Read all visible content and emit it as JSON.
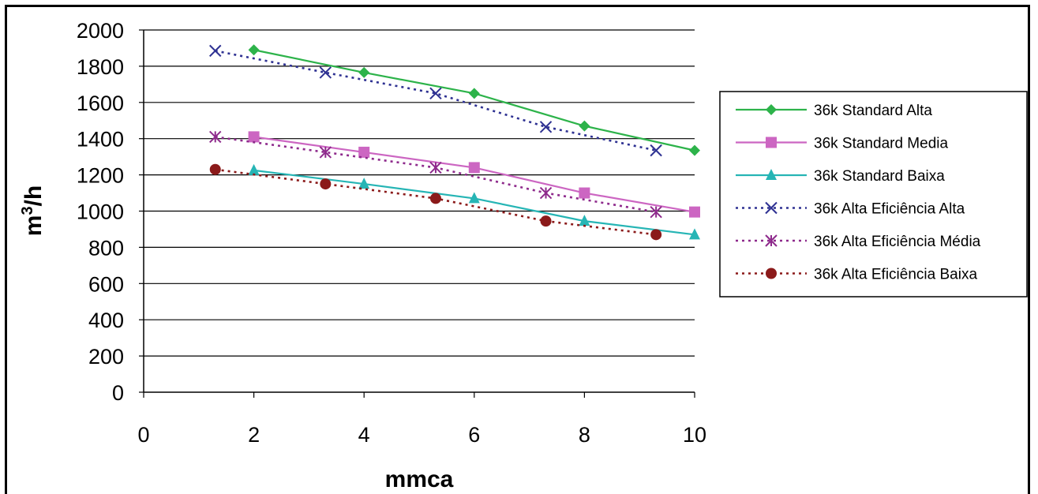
{
  "chart_data": {
    "type": "line",
    "xlabel": "mmca",
    "ylabel": "m³/h",
    "xlim": [
      0,
      10
    ],
    "ylim": [
      0,
      2000
    ],
    "xticks": [
      "0",
      "2",
      "4",
      "6",
      "8",
      "10"
    ],
    "yticks": [
      "0",
      "200",
      "400",
      "600",
      "800",
      "1000",
      "1200",
      "1400",
      "1600",
      "1800",
      "2000"
    ],
    "grid": "horizontal",
    "legend_position": "right",
    "series": [
      {
        "name": "36k Standard Alta",
        "color": "#2DB34A",
        "marker": "diamond",
        "dash": "solid",
        "x": [
          2,
          4,
          6,
          8,
          10
        ],
        "y": [
          1890,
          1765,
          1650,
          1470,
          1335
        ]
      },
      {
        "name": "36k Standard Media",
        "color": "#CC66C2",
        "marker": "square",
        "dash": "solid",
        "x": [
          2,
          4,
          6,
          8,
          10
        ],
        "y": [
          1410,
          1325,
          1240,
          1100,
          995
        ]
      },
      {
        "name": "36k Standard Baixa",
        "color": "#26B5B5",
        "marker": "triangle",
        "dash": "solid",
        "x": [
          2,
          4,
          6,
          8,
          10
        ],
        "y": [
          1225,
          1150,
          1070,
          945,
          870
        ]
      },
      {
        "name": "36k Alta Eficiência Alta",
        "color": "#2E3192",
        "marker": "x",
        "dash": "dotted",
        "x": [
          1.3,
          3.3,
          5.3,
          7.3,
          9.3
        ],
        "y": [
          1885,
          1765,
          1650,
          1465,
          1335
        ]
      },
      {
        "name": "36k Alta Eficiência Média",
        "color": "#8E2A8C",
        "marker": "asterisk",
        "dash": "dotted",
        "x": [
          1.3,
          3.3,
          5.3,
          7.3,
          9.3
        ],
        "y": [
          1410,
          1325,
          1240,
          1100,
          995
        ]
      },
      {
        "name": "36k Alta Eficiência Baixa",
        "color": "#8B1A1A",
        "marker": "circle",
        "dash": "dotted",
        "x": [
          1.3,
          3.3,
          5.3,
          7.3,
          9.3
        ],
        "y": [
          1230,
          1150,
          1070,
          945,
          870
        ]
      }
    ]
  }
}
